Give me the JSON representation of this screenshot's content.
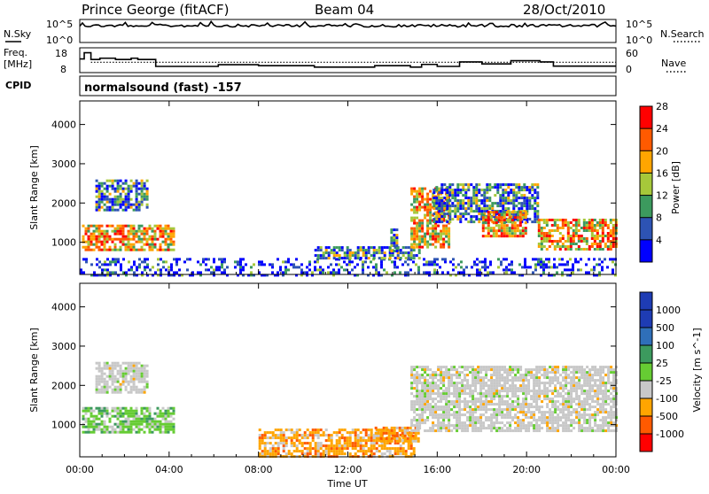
{
  "header": {
    "station": "Prince George (fitACF)",
    "beam": "Beam 04",
    "date": "28/Oct/2010"
  },
  "noise_panel": {
    "left_label": "N.Sky",
    "right_label": "N.Search",
    "tick_top": "10^5",
    "tick_bottom": "10^0"
  },
  "freq_panel": {
    "left_label_1": "Freq.",
    "left_label_2": "[MHz]",
    "left_ticks": [
      "18",
      "8"
    ],
    "right_label": "Nave",
    "right_ticks": [
      "60",
      "0"
    ],
    "freq_mhz_approx": 11,
    "nave_approx": 25
  },
  "cpid": {
    "label": "CPID",
    "value": "normalsound (fast) -157"
  },
  "x_axis": {
    "label": "Time UT",
    "ticks": [
      "00:00",
      "04:00",
      "08:00",
      "12:00",
      "16:00",
      "20:00",
      "00:00"
    ]
  },
  "chart_data": [
    {
      "type": "heatmap",
      "title": "",
      "xlabel": "Time UT",
      "ylabel": "Slant Range [km]",
      "x_range_hours": [
        0,
        24
      ],
      "ylim": [
        180,
        4600
      ],
      "y_ticks": [
        1000,
        2000,
        3000,
        4000
      ],
      "colorbar": {
        "label": "Power [dB]",
        "ticks": [
          "4",
          "8",
          "12",
          "16",
          "20",
          "24",
          "28"
        ],
        "range": [
          0,
          32
        ],
        "colors": [
          "#0000ff",
          "#2d53b4",
          "#3c9a5e",
          "#a6c83a",
          "#ffa500",
          "#ff5a00",
          "#ff0000"
        ]
      },
      "echo_regions": [
        {
          "t": [
            0.1,
            4.2
          ],
          "r": [
            800,
            1450
          ],
          "level": "strong"
        },
        {
          "t": [
            0.7,
            3.0
          ],
          "r": [
            1850,
            2600
          ],
          "level": "medium"
        },
        {
          "t": [
            0.0,
            24.0
          ],
          "r": [
            180,
            600
          ],
          "level": "weak"
        },
        {
          "t": [
            10.5,
            15.2
          ],
          "r": [
            600,
            900
          ],
          "level": "medium"
        },
        {
          "t": [
            13.9,
            14.2
          ],
          "r": [
            800,
            1350
          ],
          "level": "medium"
        },
        {
          "t": [
            14.8,
            16.5
          ],
          "r": [
            850,
            2400
          ],
          "level": "strong"
        },
        {
          "t": [
            15.8,
            20.5
          ],
          "r": [
            1500,
            2500
          ],
          "level": "medium"
        },
        {
          "t": [
            18.0,
            20.0
          ],
          "r": [
            1150,
            1800
          ],
          "level": "strong"
        },
        {
          "t": [
            20.5,
            24.0
          ],
          "r": [
            850,
            1600
          ],
          "level": "strong"
        }
      ]
    },
    {
      "type": "heatmap",
      "title": "",
      "xlabel": "Time UT",
      "ylabel": "Slant Range [km]",
      "x_range_hours": [
        0,
        24
      ],
      "ylim": [
        180,
        4600
      ],
      "y_ticks": [
        1000,
        2000,
        3000,
        4000
      ],
      "colorbar": {
        "label": "Velocity [m s^-1]",
        "ticks": [
          "1000",
          "500",
          "100",
          "25",
          "-25",
          "-100",
          "-500",
          "-1000"
        ],
        "colors": [
          "#1e3cb4",
          "#2f6fb9",
          "#3c9a5e",
          "#66cc33",
          "#c8c8c8",
          "#ffa500",
          "#ff5a00",
          "#ff0000"
        ]
      },
      "echo_regions": [
        {
          "t": [
            0.1,
            4.2
          ],
          "r": [
            800,
            1450
          ],
          "class": "towards"
        },
        {
          "t": [
            0.7,
            3.0
          ],
          "r": [
            1850,
            2600
          ],
          "class": "ground"
        },
        {
          "t": [
            8.0,
            15.0
          ],
          "r": [
            180,
            900
          ],
          "class": "away"
        },
        {
          "t": [
            13.2,
            15.2
          ],
          "r": [
            600,
            950
          ],
          "class": "away"
        },
        {
          "t": [
            14.8,
            24.0
          ],
          "r": [
            850,
            2500
          ],
          "class": "ground"
        }
      ]
    }
  ]
}
